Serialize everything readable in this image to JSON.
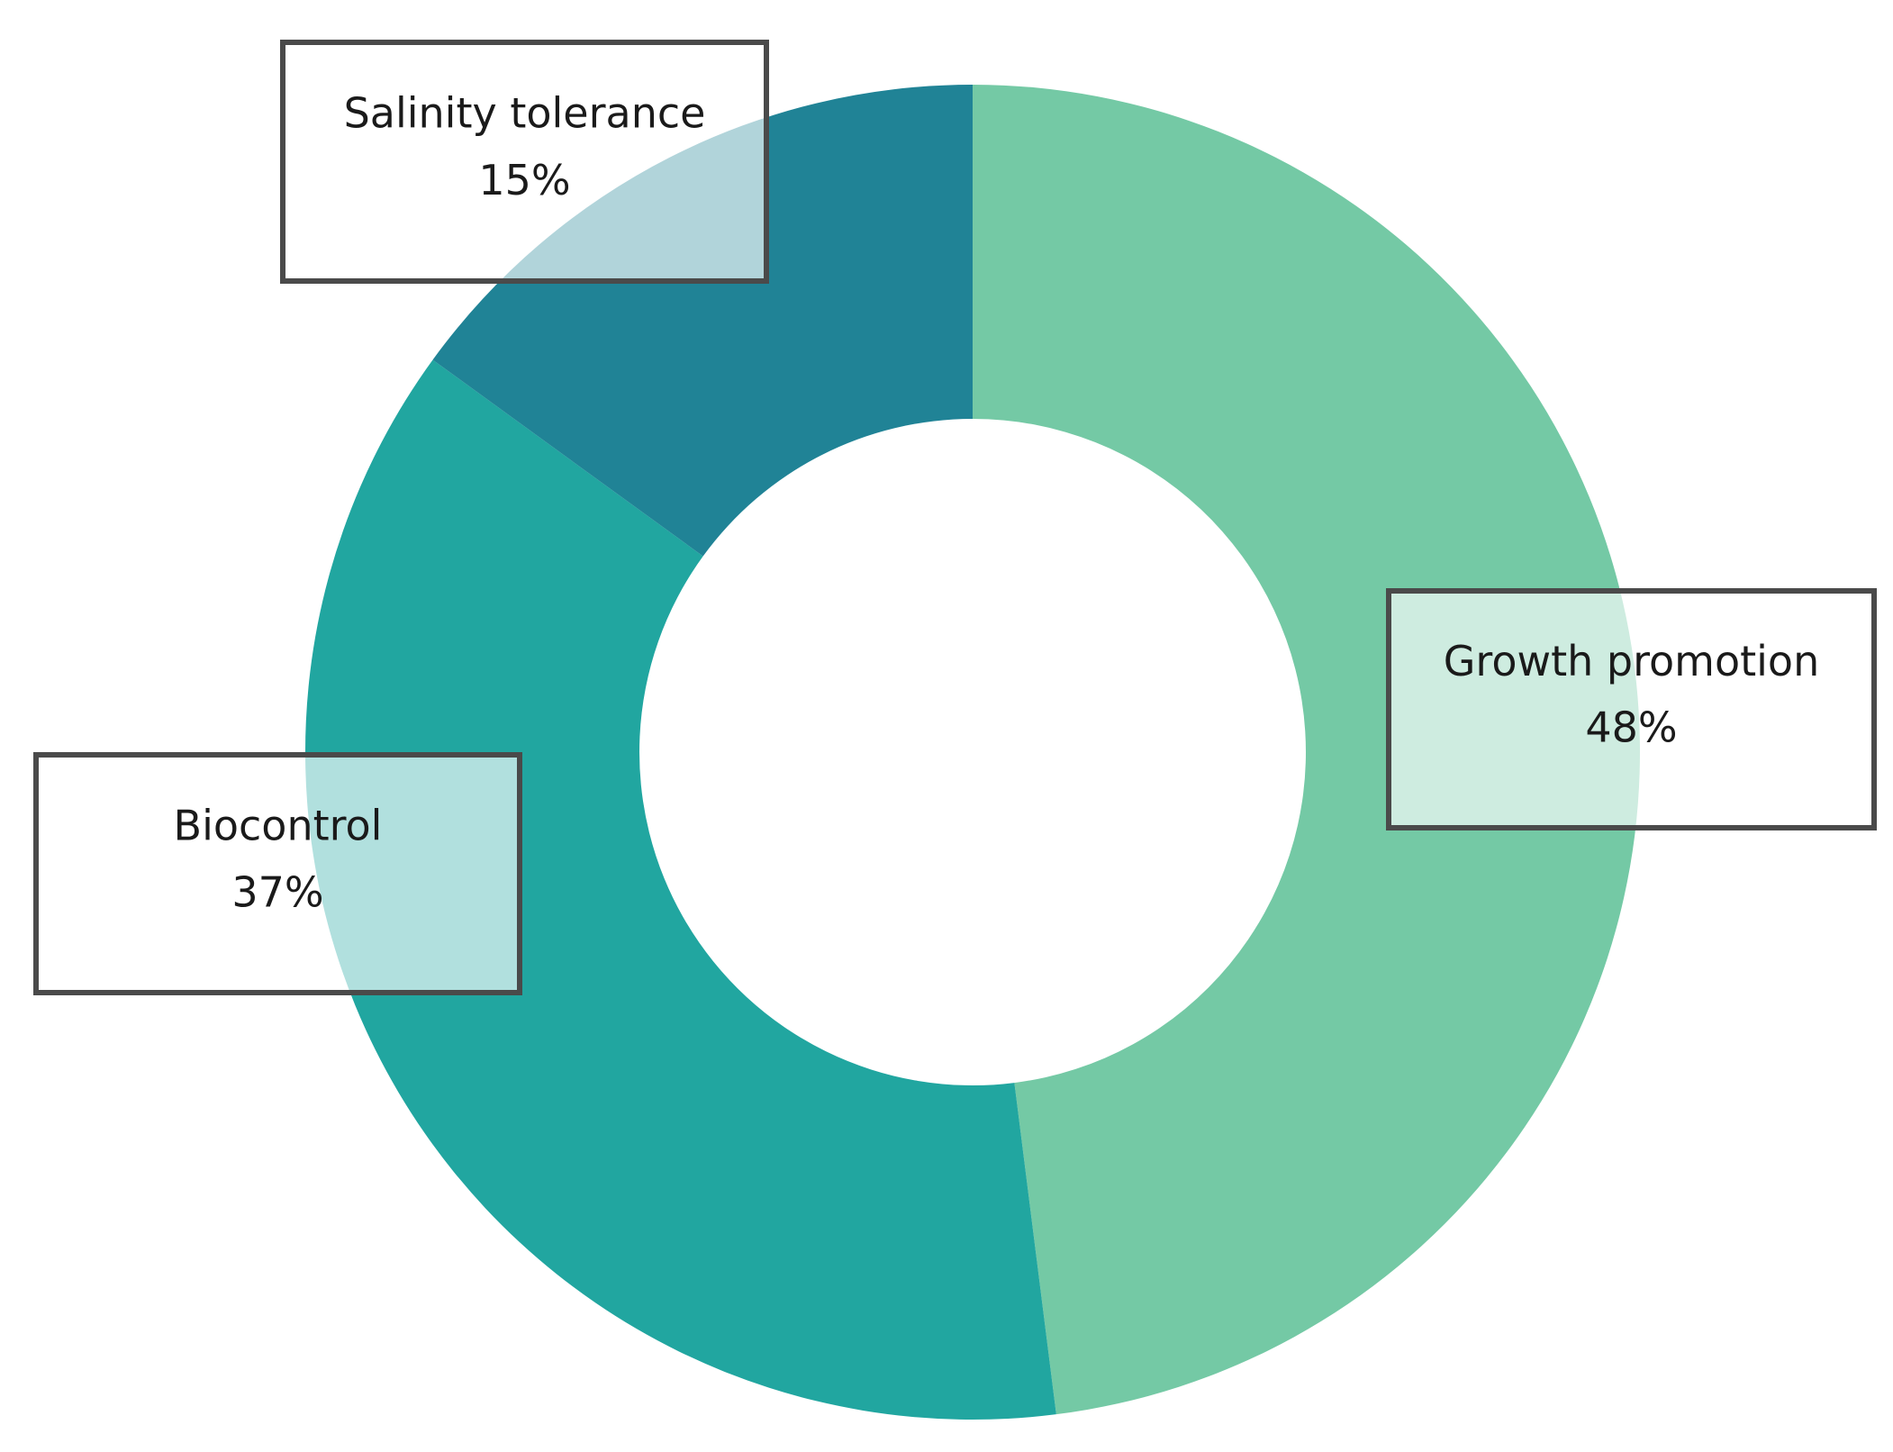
{
  "chart_data": {
    "type": "donut",
    "categories": [
      "Growth promotion",
      "Biocontrol",
      "Salinity tolerance"
    ],
    "values": [
      48,
      37,
      15
    ],
    "value_labels": [
      "48%",
      "37%",
      "15%"
    ],
    "colors": [
      "#74c9a5",
      "#21a6a0",
      "#208396"
    ]
  }
}
